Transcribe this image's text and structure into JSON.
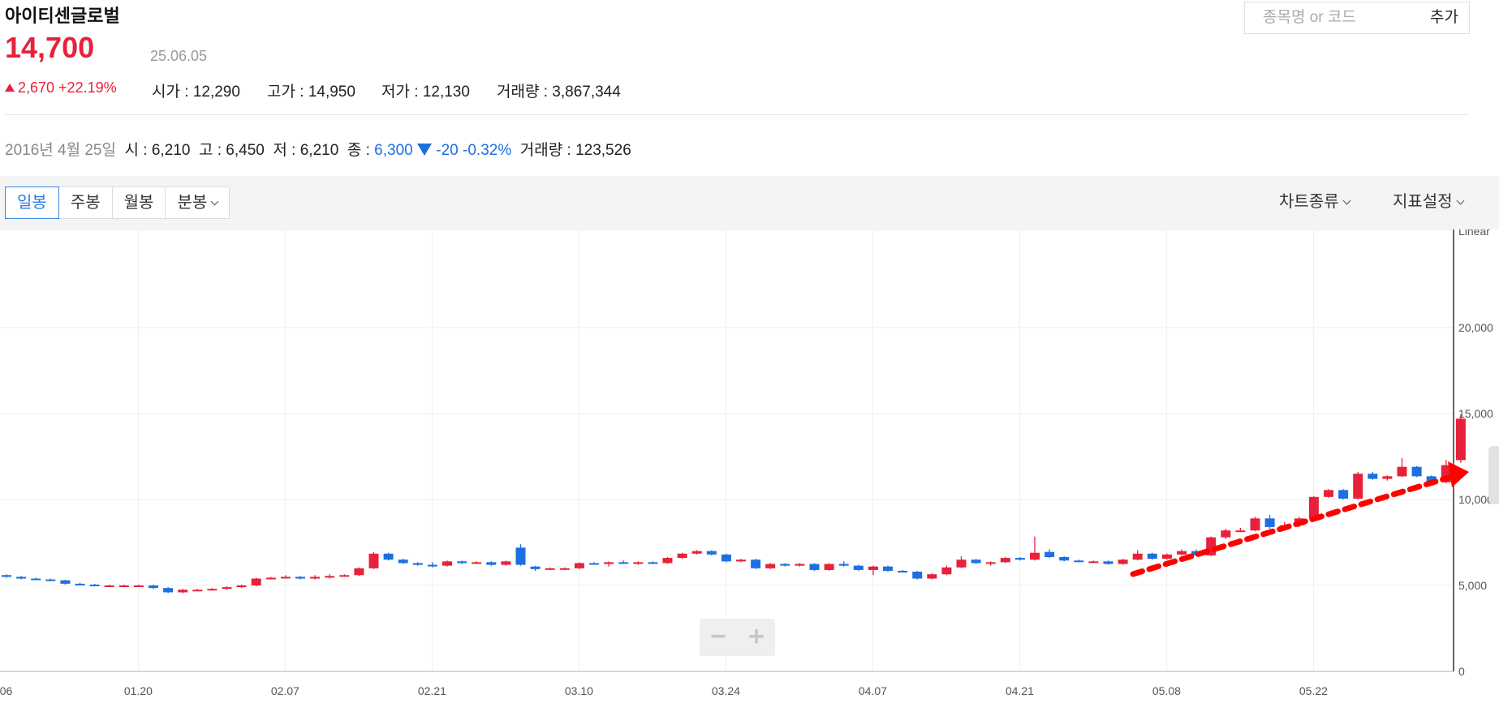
{
  "header": {
    "stock_name": "아이티센글로벌",
    "price": "14,700",
    "date": "25.06.05",
    "change": "2,670 +22.19%",
    "stats": [
      {
        "label": "시가 :",
        "value": "12,290"
      },
      {
        "label": "고가 :",
        "value": "14,950"
      },
      {
        "label": "저가 :",
        "value": "12,130"
      },
      {
        "label": "거래량 :",
        "value": "3,867,344"
      }
    ]
  },
  "search": {
    "placeholder": "종목명 or 코드",
    "add_label": "추가"
  },
  "info_row": {
    "date": "2016년 4월 25일",
    "open_label": "시 :",
    "open": "6,210",
    "high_label": "고 :",
    "high": "6,450",
    "low_label": "저 :",
    "low": "6,210",
    "close_label": "종 :",
    "close": "6,300",
    "change": "-20",
    "change_pct": "-0.32%",
    "volume_label": "거래량 :",
    "volume": "123,526"
  },
  "toolbar": {
    "tabs": [
      "일봉",
      "주봉",
      "월봉",
      "분봉"
    ],
    "active_tab": "일봉",
    "chart_type_label": "차트종류",
    "indicator_label": "지표설정"
  },
  "colors": {
    "up": "#e8213b",
    "down": "#1d6fe0",
    "accent": "#2c7be5",
    "arrow": "#ff0000"
  },
  "icons": [
    "triangle-up-icon",
    "triangle-down-icon",
    "chevron-down-icon",
    "zoom-out-icon",
    "zoom-in-icon",
    "red-dashed-trend-arrow"
  ],
  "chart_data": {
    "type": "candlestick",
    "scale_label": "Linear",
    "y_ticks": [
      "0",
      "5,000",
      "10,000",
      "15,000",
      "20,000"
    ],
    "ylim": [
      0,
      25000
    ],
    "x_ticks": [
      {
        "i": 0,
        "label": "06"
      },
      {
        "i": 9,
        "label": "01.20"
      },
      {
        "i": 19,
        "label": "02.07"
      },
      {
        "i": 29,
        "label": "02.21"
      },
      {
        "i": 39,
        "label": "03.10"
      },
      {
        "i": 49,
        "label": "03.24"
      },
      {
        "i": 59,
        "label": "04.07"
      },
      {
        "i": 69,
        "label": "04.21"
      },
      {
        "i": 79,
        "label": "05.08"
      },
      {
        "i": 89,
        "label": "05.22"
      }
    ],
    "candles": [
      [
        5600,
        5650,
        5450,
        5500
      ],
      [
        5500,
        5550,
        5350,
        5400
      ],
      [
        5400,
        5450,
        5300,
        5350
      ],
      [
        5350,
        5400,
        5250,
        5300
      ],
      [
        5300,
        5320,
        5050,
        5100
      ],
      [
        5100,
        5150,
        5000,
        5050
      ],
      [
        5050,
        5100,
        4950,
        5000
      ],
      [
        5000,
        5050,
        4950,
        5000
      ],
      [
        5000,
        5050,
        4950,
        5000
      ],
      [
        5000,
        5050,
        4950,
        5000
      ],
      [
        5000,
        5050,
        4800,
        4850
      ],
      [
        4850,
        4900,
        4550,
        4600
      ],
      [
        4600,
        4800,
        4550,
        4750
      ],
      [
        4750,
        4800,
        4700,
        4750
      ],
      [
        4750,
        4850,
        4700,
        4800
      ],
      [
        4800,
        4950,
        4750,
        4900
      ],
      [
        4900,
        5050,
        4850,
        5000
      ],
      [
        5000,
        5450,
        4950,
        5400
      ],
      [
        5400,
        5500,
        5350,
        5450
      ],
      [
        5450,
        5600,
        5400,
        5500
      ],
      [
        5500,
        5550,
        5350,
        5400
      ],
      [
        5400,
        5600,
        5350,
        5500
      ],
      [
        5500,
        5650,
        5400,
        5550
      ],
      [
        5550,
        5650,
        5500,
        5600
      ],
      [
        5600,
        6050,
        5550,
        6000
      ],
      [
        6000,
        6950,
        5950,
        6850
      ],
      [
        6850,
        6900,
        6450,
        6500
      ],
      [
        6500,
        6550,
        6250,
        6300
      ],
      [
        6300,
        6350,
        6150,
        6200
      ],
      [
        6200,
        6350,
        6050,
        6150
      ],
      [
        6150,
        6450,
        6100,
        6400
      ],
      [
        6400,
        6450,
        6250,
        6300
      ],
      [
        6300,
        6400,
        6250,
        6350
      ],
      [
        6350,
        6400,
        6150,
        6200
      ],
      [
        6200,
        6450,
        6150,
        6400
      ],
      [
        7200,
        7400,
        6150,
        6200
      ],
      [
        6100,
        6150,
        5850,
        5950
      ],
      [
        5950,
        6050,
        5900,
        6000
      ],
      [
        6000,
        6050,
        5950,
        6000
      ],
      [
        6000,
        6350,
        5950,
        6300
      ],
      [
        6300,
        6350,
        6200,
        6250
      ],
      [
        6250,
        6400,
        6100,
        6350
      ],
      [
        6350,
        6450,
        6250,
        6300
      ],
      [
        6300,
        6400,
        6200,
        6350
      ],
      [
        6350,
        6400,
        6250,
        6300
      ],
      [
        6300,
        6650,
        6250,
        6600
      ],
      [
        6600,
        6900,
        6550,
        6850
      ],
      [
        6850,
        7050,
        6800,
        7000
      ],
      [
        7000,
        7050,
        6750,
        6800
      ],
      [
        6800,
        6850,
        6350,
        6400
      ],
      [
        6400,
        6550,
        6350,
        6500
      ],
      [
        6500,
        6550,
        5950,
        6000
      ],
      [
        6000,
        6300,
        5950,
        6250
      ],
      [
        6250,
        6300,
        6100,
        6150
      ],
      [
        6150,
        6300,
        6100,
        6250
      ],
      [
        6250,
        6300,
        5850,
        5900
      ],
      [
        5900,
        6300,
        5850,
        6250
      ],
      [
        6250,
        6400,
        6100,
        6150
      ],
      [
        6150,
        6200,
        5850,
        5900
      ],
      [
        5900,
        6150,
        5600,
        6100
      ],
      [
        6100,
        6150,
        5800,
        5850
      ],
      [
        5850,
        5900,
        5750,
        5800
      ],
      [
        5800,
        5850,
        5350,
        5400
      ],
      [
        5400,
        5700,
        5350,
        5650
      ],
      [
        5650,
        6150,
        5600,
        6050
      ],
      [
        6050,
        6700,
        6000,
        6500
      ],
      [
        6500,
        6550,
        6250,
        6300
      ],
      [
        6300,
        6400,
        6150,
        6350
      ],
      [
        6350,
        6650,
        6300,
        6600
      ],
      [
        6600,
        6650,
        6450,
        6500
      ],
      [
        6500,
        7850,
        6450,
        6900
      ],
      [
        6950,
        7100,
        6600,
        6650
      ],
      [
        6650,
        6700,
        6400,
        6450
      ],
      [
        6450,
        6500,
        6350,
        6400
      ],
      [
        6400,
        6450,
        6350,
        6400
      ],
      [
        6400,
        6450,
        6200,
        6250
      ],
      [
        6250,
        6550,
        6200,
        6500
      ],
      [
        6500,
        7050,
        6450,
        6850
      ],
      [
        6850,
        6900,
        6500,
        6550
      ],
      [
        6550,
        6850,
        6500,
        6800
      ],
      [
        6800,
        7100,
        6750,
        7000
      ],
      [
        7000,
        7100,
        6700,
        6750
      ],
      [
        6750,
        7850,
        6700,
        7800
      ],
      [
        7800,
        8300,
        7700,
        8200
      ],
      [
        8200,
        8350,
        8100,
        8200
      ],
      [
        8200,
        9000,
        8150,
        8900
      ],
      [
        8900,
        9100,
        8300,
        8400
      ],
      [
        8400,
        8700,
        8300,
        8500
      ],
      [
        8500,
        9000,
        8400,
        8900
      ],
      [
        8900,
        10200,
        8850,
        10150
      ],
      [
        10150,
        10600,
        10100,
        10550
      ],
      [
        10550,
        10600,
        10000,
        10050
      ],
      [
        10050,
        11600,
        10000,
        11500
      ],
      [
        11500,
        11600,
        11150,
        11200
      ],
      [
        11200,
        11400,
        11100,
        11350
      ],
      [
        11350,
        12400,
        11300,
        11900
      ],
      [
        11900,
        11950,
        11300,
        11350
      ],
      [
        11350,
        11400,
        10950,
        11000
      ],
      [
        11000,
        12300,
        10950,
        12000
      ],
      [
        12290,
        14950,
        12130,
        14700
      ]
    ]
  }
}
